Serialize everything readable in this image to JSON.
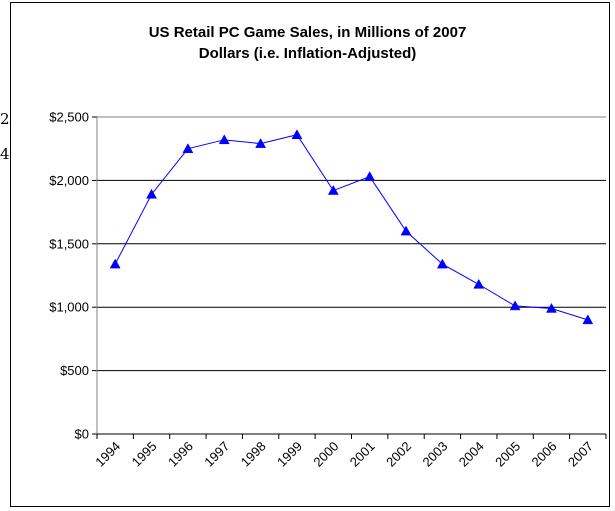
{
  "stray_glyphs": [
    "2",
    "4"
  ],
  "chart_data": {
    "type": "line",
    "title_lines": [
      "US Retail PC Game Sales, in Millions of 2007",
      "Dollars (i.e. Inflation-Adjusted)"
    ],
    "xlabel": "",
    "ylabel": "",
    "categories": [
      "1994",
      "1995",
      "1996",
      "1997",
      "1998",
      "1999",
      "2000",
      "2001",
      "2002",
      "2003",
      "2004",
      "2005",
      "2006",
      "2007"
    ],
    "series": [
      {
        "values": [
          1340,
          1890,
          2250,
          2320,
          2290,
          2360,
          1920,
          2030,
          1600,
          1340,
          1180,
          1010,
          990,
          900
        ]
      }
    ],
    "y_ticks": [
      "$0",
      "$500",
      "$1,000",
      "$1,500",
      "$2,000",
      "$2,500"
    ],
    "ylim": [
      0,
      2500
    ],
    "y_step": 500,
    "grid": true,
    "marker": "triangle",
    "line_color": "#0000FF",
    "legend": "none"
  }
}
